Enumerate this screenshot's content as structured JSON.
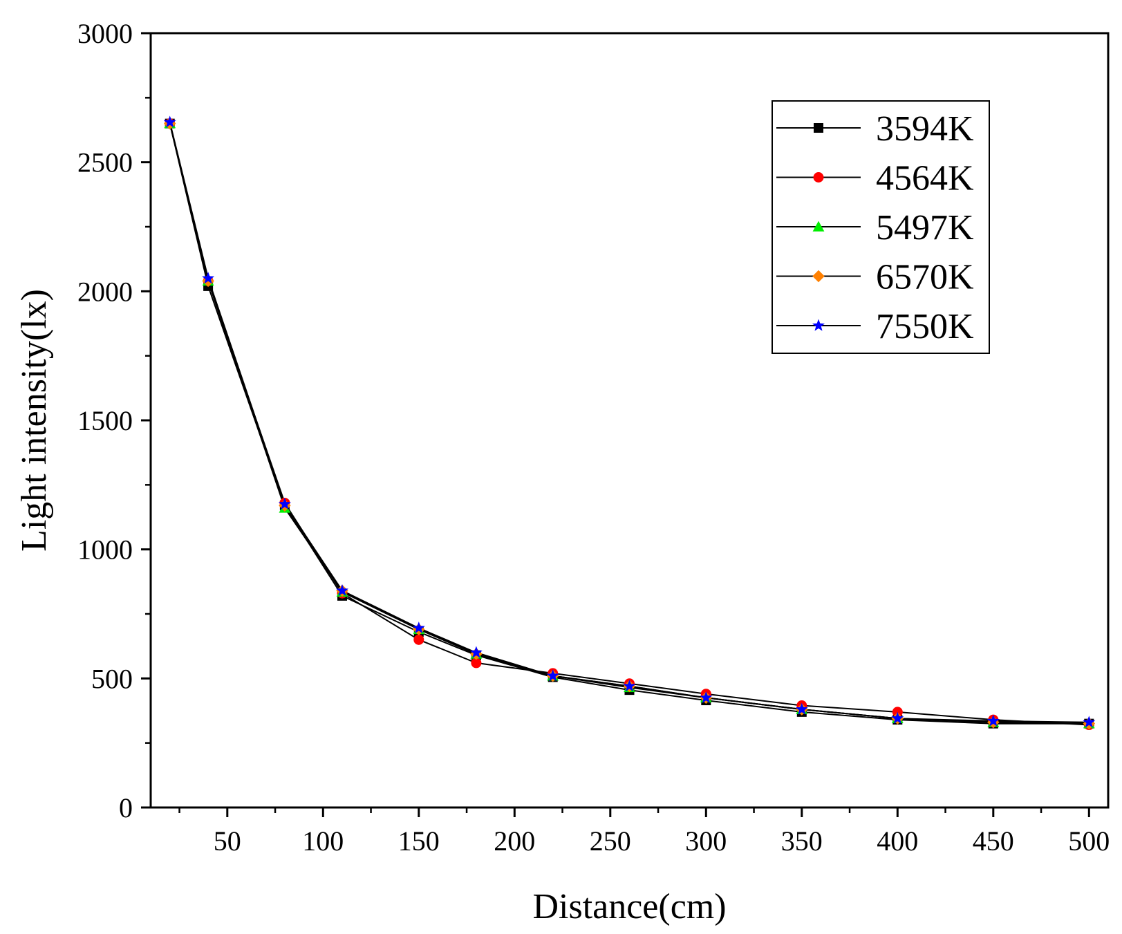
{
  "chart_data": {
    "type": "line",
    "title": "",
    "xlabel": "Distance(cm)",
    "ylabel": "Light intensity(lx)",
    "xlim": [
      10,
      510
    ],
    "ylim": [
      0,
      3000
    ],
    "x_ticks": [
      50,
      100,
      150,
      200,
      250,
      300,
      350,
      400,
      450,
      500
    ],
    "y_ticks": [
      0,
      500,
      1000,
      1500,
      2000,
      2500,
      3000
    ],
    "grid": false,
    "legend_position": "top-right",
    "x": [
      20,
      40,
      80,
      110,
      150,
      180,
      220,
      260,
      300,
      350,
      400,
      450,
      500
    ],
    "series": [
      {
        "name": "3594K",
        "marker": "square",
        "color": "#000000",
        "values": [
          2650,
          2020,
          1170,
          820,
          680,
          590,
          505,
          455,
          415,
          370,
          340,
          325,
          325
        ]
      },
      {
        "name": "4564K",
        "marker": "circle",
        "color": "#ff0000",
        "values": [
          2650,
          2040,
          1180,
          830,
          650,
          560,
          520,
          480,
          440,
          395,
          370,
          340,
          320
        ]
      },
      {
        "name": "5497K",
        "marker": "triangle",
        "color": "#00ee00",
        "values": [
          2650,
          2040,
          1160,
          835,
          690,
          595,
          510,
          465,
          425,
          380,
          345,
          330,
          325
        ]
      },
      {
        "name": "6570K",
        "marker": "diamond",
        "color": "#ff8000",
        "values": [
          2650,
          2040,
          1170,
          840,
          690,
          595,
          510,
          470,
          425,
          380,
          345,
          330,
          325
        ]
      },
      {
        "name": "7550K",
        "marker": "star",
        "color": "#0000ff",
        "values": [
          2655,
          2050,
          1175,
          840,
          695,
          600,
          510,
          470,
          425,
          380,
          345,
          335,
          330
        ]
      }
    ]
  }
}
